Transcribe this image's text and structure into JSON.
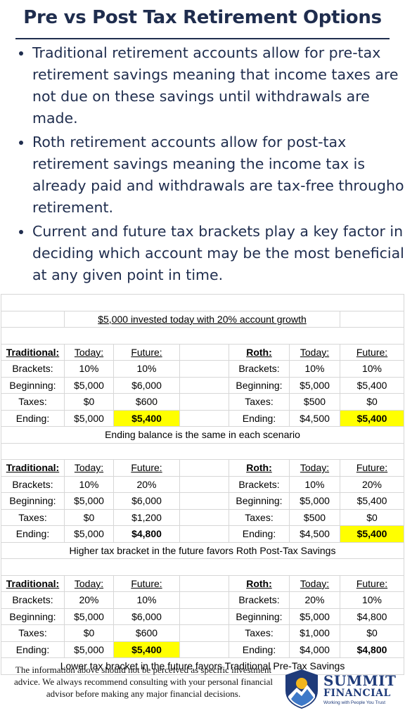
{
  "title": "Pre vs Post Tax Retirement Options",
  "bullets": [
    "Traditional retirement accounts allow for pre-tax retirement savings meaning that income taxes are not due on these savings until withdrawals are made.",
    "Roth retirement accounts allow for post-tax retirement savings meaning the income tax is already paid and withdrawals are tax-free throughout retirement.",
    "Current and future tax brackets play a key factor in deciding which account may be the most beneficial at any given point in time."
  ],
  "table": {
    "heading": "$5,000 invested today with 20% account growth",
    "scenarios": [
      {
        "traditional": {
          "label": "Traditional:",
          "today": "Today:",
          "future": "Future:",
          "rows": [
            {
              "label": "Brackets:",
              "today": "10%",
              "future": "10%"
            },
            {
              "label": "Beginning:",
              "today": "$5,000",
              "future": "$6,000"
            },
            {
              "label": "Taxes:",
              "today": "$0",
              "future": "$600"
            },
            {
              "label": "Ending:",
              "today": "$5,000",
              "future": "$5,400"
            }
          ]
        },
        "roth": {
          "label": "Roth:",
          "today": "Today:",
          "future": "Future:",
          "rows": [
            {
              "label": "Brackets:",
              "today": "10%",
              "future": "10%"
            },
            {
              "label": "Beginning:",
              "today": "$5,000",
              "future": "$5,400"
            },
            {
              "label": "Taxes:",
              "today": "$500",
              "future": "$0"
            },
            {
              "label": "Ending:",
              "today": "$4,500",
              "future": "$5,400"
            }
          ]
        },
        "conclusion": "Ending balance is the same in each scenario"
      },
      {
        "traditional": {
          "label": "Traditional:",
          "today": "Today:",
          "future": "Future:",
          "rows": [
            {
              "label": "Brackets:",
              "today": "10%",
              "future": "20%"
            },
            {
              "label": "Beginning:",
              "today": "$5,000",
              "future": "$6,000"
            },
            {
              "label": "Taxes:",
              "today": "$0",
              "future": "$1,200"
            },
            {
              "label": "Ending:",
              "today": "$5,000",
              "future": "$4,800"
            }
          ]
        },
        "roth": {
          "label": "Roth:",
          "today": "Today:",
          "future": "Future:",
          "rows": [
            {
              "label": "Brackets:",
              "today": "10%",
              "future": "20%"
            },
            {
              "label": "Beginning:",
              "today": "$5,000",
              "future": "$5,400"
            },
            {
              "label": "Taxes:",
              "today": "$500",
              "future": "$0"
            },
            {
              "label": "Ending:",
              "today": "$4,500",
              "future": "$5,400"
            }
          ]
        },
        "conclusion": "Higher tax bracket in the future favors Roth Post-Tax Savings"
      },
      {
        "traditional": {
          "label": "Traditional:",
          "today": "Today:",
          "future": "Future:",
          "rows": [
            {
              "label": "Brackets:",
              "today": "20%",
              "future": "10%"
            },
            {
              "label": "Beginning:",
              "today": "$5,000",
              "future": "$6,000"
            },
            {
              "label": "Taxes:",
              "today": "$0",
              "future": "$600"
            },
            {
              "label": "Ending:",
              "today": "$5,000",
              "future": "$5,400"
            }
          ]
        },
        "roth": {
          "label": "Roth:",
          "today": "Today:",
          "future": "Future:",
          "rows": [
            {
              "label": "Brackets:",
              "today": "20%",
              "future": "10%"
            },
            {
              "label": "Beginning:",
              "today": "$5,000",
              "future": "$4,800"
            },
            {
              "label": "Taxes:",
              "today": "$1,000",
              "future": "$0"
            },
            {
              "label": "Ending:",
              "today": "$4,000",
              "future": "$4,800"
            }
          ]
        },
        "conclusion": "Lower tax bracket in the future favors Traditional Pre-Tax Savings"
      }
    ]
  },
  "colors": {
    "navy": "#1f2d4e",
    "highlight": "#ffff00"
  },
  "footer": {
    "disclaimer": "The information above should not be perceived as specific investment advice. We always recommend consulting with your personal financial advisor before making any major financial decisions.",
    "logo": {
      "name": "SUMMIT",
      "sub": "FINANCIAL",
      "tagline": "Working with People You Trust",
      "icon": "mountain-sun-shield-icon"
    }
  }
}
